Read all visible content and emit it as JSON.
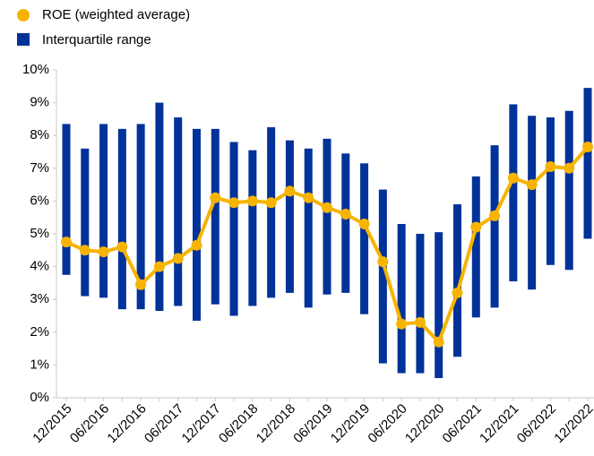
{
  "chart_data": {
    "type": "bar-range-line",
    "categories": [
      "12/2015",
      null,
      "06/2016",
      null,
      "12/2016",
      null,
      "06/2017",
      null,
      "12/2017",
      null,
      "06/2018",
      null,
      "12/2018",
      null,
      "06/2019",
      null,
      "12/2019",
      null,
      "06/2020",
      null,
      "12/2020",
      null,
      "06/2021",
      null,
      "12/2021",
      null,
      "06/2022",
      null,
      "12/2022"
    ],
    "series": [
      {
        "name": "ROE (weighted average)",
        "color": "#f6b400",
        "type": "line",
        "values": [
          4.75,
          4.5,
          4.45,
          4.6,
          3.45,
          4.0,
          4.25,
          4.65,
          6.1,
          5.95,
          6.0,
          5.95,
          6.3,
          6.1,
          5.8,
          5.6,
          5.3,
          4.15,
          2.25,
          2.3,
          1.7,
          3.2,
          5.2,
          5.55,
          6.7,
          6.5,
          7.05,
          7.0,
          7.65
        ]
      },
      {
        "name": "Interquartile range",
        "color": "#003299",
        "type": "range",
        "low": [
          3.75,
          3.1,
          3.05,
          2.7,
          2.7,
          2.65,
          2.8,
          2.35,
          2.85,
          2.5,
          2.8,
          3.05,
          3.2,
          2.75,
          3.15,
          3.2,
          2.55,
          1.05,
          0.75,
          0.75,
          0.6,
          1.25,
          2.45,
          2.75,
          3.55,
          3.3,
          4.05,
          3.9,
          4.85
        ],
        "high": [
          8.35,
          7.6,
          8.35,
          8.2,
          8.35,
          9.0,
          8.55,
          8.2,
          8.2,
          7.8,
          7.55,
          8.25,
          7.85,
          7.6,
          7.9,
          7.45,
          7.15,
          6.35,
          5.3,
          5.0,
          5.05,
          5.9,
          6.75,
          7.7,
          8.95,
          8.6,
          8.55,
          8.75,
          9.45
        ]
      }
    ],
    "ylim": [
      0,
      10
    ],
    "yticks": [
      {
        "value": 0,
        "label": "0%"
      },
      {
        "value": 1,
        "label": "1%"
      },
      {
        "value": 2,
        "label": "2%"
      },
      {
        "value": 3,
        "label": "3%"
      },
      {
        "value": 4,
        "label": "4%"
      },
      {
        "value": 5,
        "label": "5%"
      },
      {
        "value": 6,
        "label": "6%"
      },
      {
        "value": 7,
        "label": "7%"
      },
      {
        "value": 8,
        "label": "8%"
      },
      {
        "value": 9,
        "label": "9%"
      },
      {
        "value": 10,
        "label": "10%"
      }
    ],
    "grid": false
  }
}
